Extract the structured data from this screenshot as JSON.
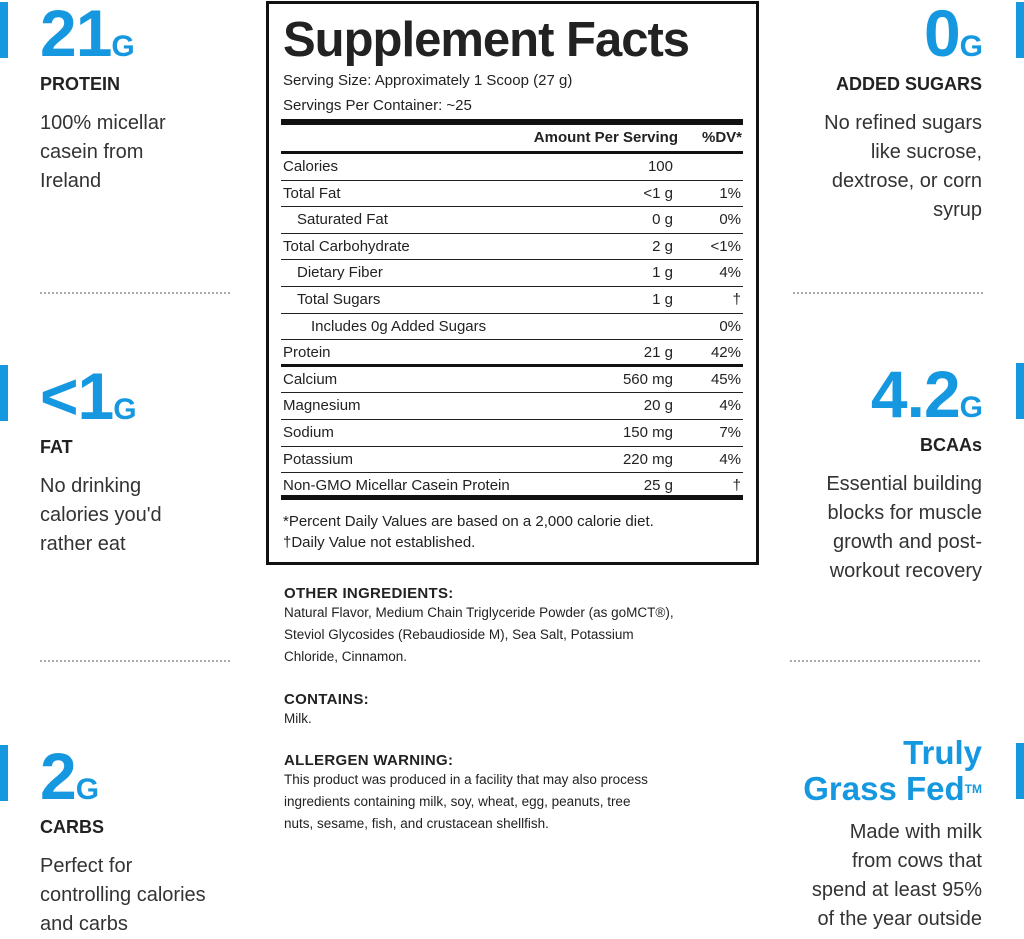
{
  "left_features": [
    {
      "value": "21",
      "unit": "G",
      "label": "PROTEIN",
      "description": [
        "100% micellar",
        "casein from",
        "Ireland"
      ]
    },
    {
      "value": "<1",
      "unit": "G",
      "label": "FAT",
      "description": [
        "No drinking",
        "calories you'd",
        "rather eat"
      ]
    },
    {
      "value": "2",
      "unit": "G",
      "label": "CARBS",
      "description": [
        "Perfect for",
        "controlling calories",
        "and carbs"
      ]
    }
  ],
  "right_features": [
    {
      "value": "0",
      "unit": "G",
      "label": "ADDED SUGARS",
      "description": [
        "No refined sugars",
        "like sucrose,",
        "dextrose, or corn",
        "syrup"
      ]
    },
    {
      "value": "4.2",
      "unit": "G",
      "label": "BCAAs",
      "description": [
        "Essential building",
        "blocks for muscle",
        "growth and post-",
        "workout recovery"
      ]
    },
    {
      "title": [
        "Truly",
        "Grass Fed"
      ],
      "mark": "TM",
      "description": [
        "Made with milk",
        "from cows that",
        "spend at least 95%",
        "of the year outside"
      ]
    }
  ],
  "facts": {
    "title": "Supplement Facts",
    "serving_size": "Serving Size: Approximately 1 Scoop (27 g)",
    "servings_per_container": "Servings Per Container: ~25",
    "header": {
      "amount": "Amount Per Serving",
      "dv": "%DV*"
    },
    "rows": [
      [
        "Calories",
        "100",
        null
      ],
      [
        "Total Fat",
        "<1 g",
        "1%"
      ],
      [
        "Saturated Fat",
        "0 g",
        "0%"
      ],
      [
        "Total Carbohydrate",
        "2 g",
        "<1%"
      ],
      [
        "Dietary Fiber",
        "1 g",
        "4%"
      ],
      [
        "Total Sugars",
        "1 g",
        "†"
      ],
      [
        "Includes 0g Added Sugars",
        null,
        "0%"
      ],
      [
        "Protein",
        "21 g",
        "42%"
      ],
      [
        "Calcium",
        "560 mg",
        "45%"
      ],
      [
        "Magnesium",
        "20 g",
        "4%"
      ],
      [
        "Sodium",
        "150 mg",
        "7%"
      ],
      [
        "Potassium",
        "220 mg",
        "4%"
      ],
      [
        "Non-GMO Micellar Casein Protein",
        "25 g",
        "†"
      ]
    ],
    "footnotes": [
      "*Percent Daily Values are based on a 2,000 calorie diet.",
      "†Daily Value not established."
    ]
  },
  "sections": [
    {
      "heading": "OTHER INGREDIENTS:",
      "lines": [
        "Natural Flavor, Medium Chain Triglyceride Powder (as goMCT®),",
        "Steviol Glycosides (Rebaudioside M), Sea Salt, Potassium",
        "Chloride, Cinnamon."
      ]
    },
    {
      "heading": "CONTAINS:",
      "lines": [
        "Milk."
      ]
    },
    {
      "heading": "ALLERGEN WARNING:",
      "lines": [
        "This product was produced in a facility that may also process",
        "ingredients containing milk, soy, wheat, egg, peanuts, tree",
        "nuts, sesame, fish, and crustacean shellfish."
      ]
    }
  ]
}
